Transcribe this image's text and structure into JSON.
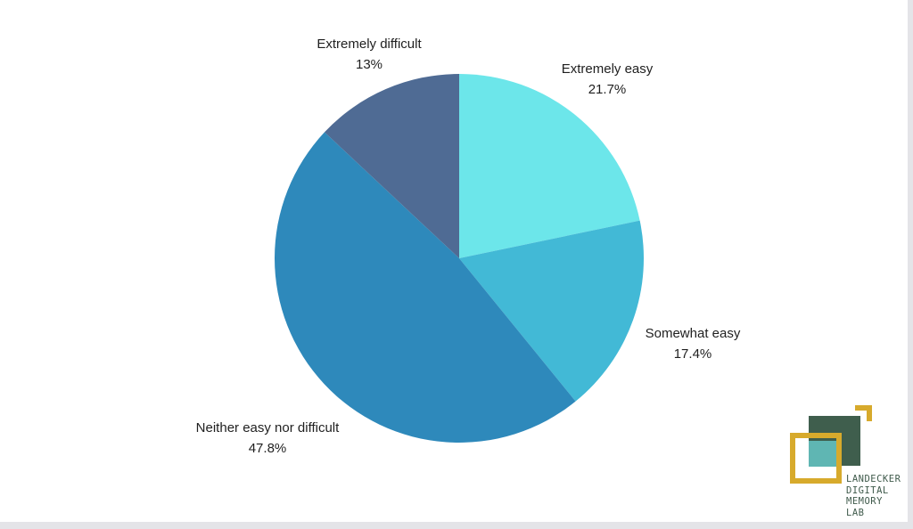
{
  "chart_data": {
    "type": "pie",
    "title": "",
    "slices": [
      {
        "label": "Extremely easy",
        "value": 21.7,
        "display": "21.7%",
        "color": "#6ce6ea"
      },
      {
        "label": "Somewhat easy",
        "value": 17.4,
        "display": "17.4%",
        "color": "#42b9d6"
      },
      {
        "label": "Neither easy nor difficult",
        "value": 47.8,
        "display": "47.8%",
        "color": "#2e89bb"
      },
      {
        "label": "Extremely difficult",
        "value": 13,
        "display": "13%",
        "color": "#4f6b94"
      }
    ],
    "start_angle": "12 o'clock",
    "direction": "clockwise",
    "legend": "none"
  },
  "logo": {
    "lines": [
      "LANDECKER",
      "DIGITAL",
      "MEMORY",
      "LAB"
    ],
    "colors": {
      "dark_square": "#3f5e4d",
      "teal_square": "#5fb6b3",
      "gold": "#d7aa2c"
    }
  }
}
